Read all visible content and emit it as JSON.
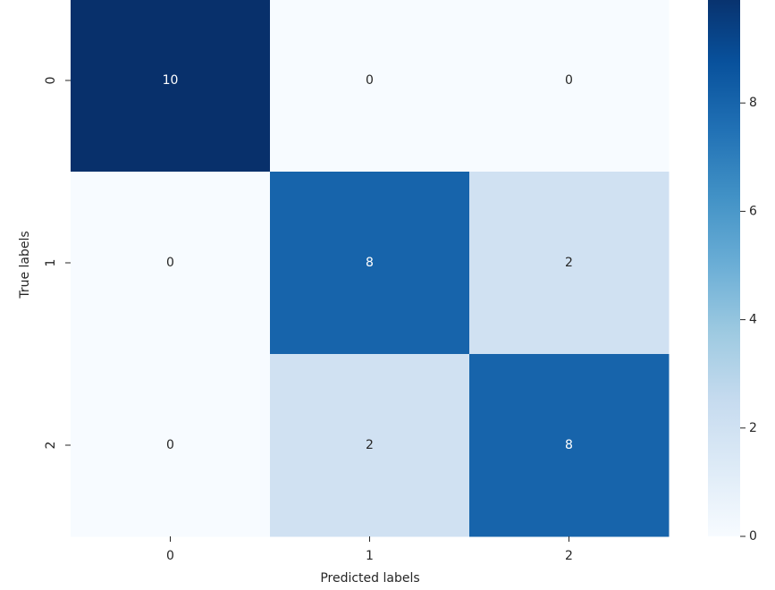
{
  "chart_data": {
    "type": "heatmap",
    "x_label": "Predicted labels",
    "y_label": "True labels",
    "x_categories": [
      "0",
      "1",
      "2"
    ],
    "y_categories": [
      "0",
      "1",
      "2"
    ],
    "values": [
      [
        10,
        0,
        0
      ],
      [
        0,
        8,
        2
      ],
      [
        0,
        2,
        8
      ]
    ],
    "colormap": [
      "#f7fbff",
      "#deebf7",
      "#c6dbef",
      "#9ecae1",
      "#6baed6",
      "#4292c6",
      "#2171b5",
      "#08519c",
      "#08306b"
    ],
    "clim": [
      0,
      10
    ],
    "cticks": [
      0,
      2,
      4,
      6,
      8
    ]
  }
}
